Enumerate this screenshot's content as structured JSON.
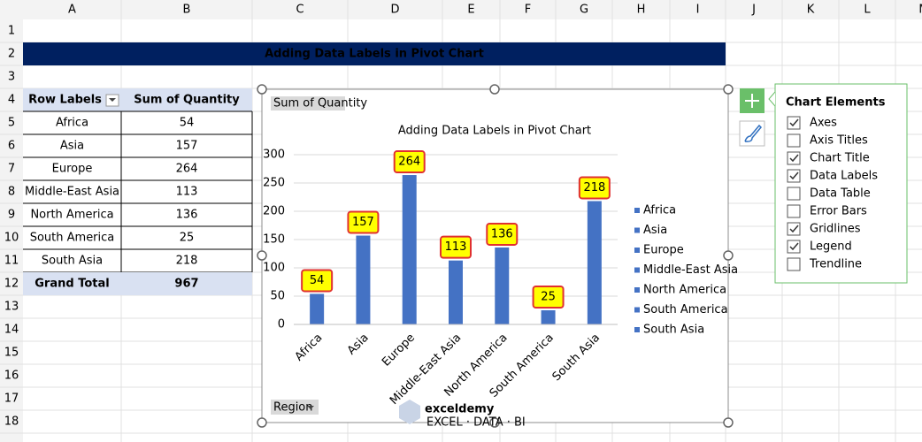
{
  "sheet": {
    "columns": [
      "A",
      "B",
      "C",
      "D",
      "E",
      "F",
      "G",
      "H",
      "I",
      "J",
      "K",
      "L",
      "M"
    ],
    "rows": [
      1,
      2,
      3,
      4,
      5,
      6,
      7,
      8,
      9,
      10,
      11,
      12,
      13,
      14,
      15,
      16,
      17,
      18
    ]
  },
  "banner": {
    "title": "Adding Data Labels in Pivot Chart"
  },
  "table": {
    "header": [
      "Row Labels",
      "Sum of Quantity"
    ],
    "rows": [
      [
        "Africa",
        54
      ],
      [
        "Asia",
        157
      ],
      [
        "Europe",
        264
      ],
      [
        "Middle-East Asia",
        113
      ],
      [
        "North America",
        136
      ],
      [
        "South America",
        25
      ],
      [
        "South Asia",
        218
      ]
    ],
    "total": [
      "Grand Total",
      967
    ]
  },
  "chart_data": {
    "type": "bar",
    "title": "Adding Data Labels in Pivot Chart",
    "value_field": "Sum of Quantity",
    "axis_field": "Region",
    "categories": [
      "Africa",
      "Asia",
      "Europe",
      "Middle-East Asia",
      "North America",
      "South America",
      "South Asia"
    ],
    "values": [
      54,
      157,
      264,
      113,
      136,
      25,
      218
    ],
    "color": "#4472c4",
    "ylim": [
      0,
      300
    ],
    "yticks": [
      0,
      50,
      100,
      150,
      200,
      250,
      300
    ],
    "grid": true,
    "legend": "right",
    "data_labels": true
  },
  "chart_elements": {
    "title": "Chart Elements",
    "items": [
      {
        "label": "Axes",
        "checked": true
      },
      {
        "label": "Axis Titles",
        "checked": false
      },
      {
        "label": "Chart Title",
        "checked": true
      },
      {
        "label": "Data Labels",
        "checked": true
      },
      {
        "label": "Data Table",
        "checked": false
      },
      {
        "label": "Error Bars",
        "checked": false
      },
      {
        "label": "Gridlines",
        "checked": true
      },
      {
        "label": "Legend",
        "checked": true
      },
      {
        "label": "Trendline",
        "checked": false
      }
    ]
  },
  "watermark": {
    "name": "exceldemy",
    "tagline": "EXCEL · DATA · BI"
  }
}
